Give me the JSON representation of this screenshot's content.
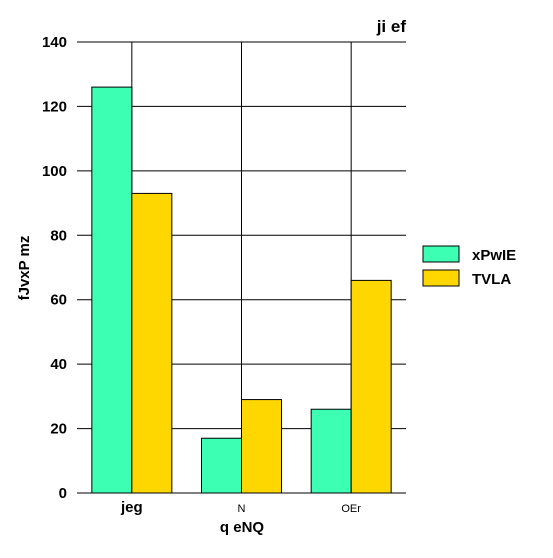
{
  "chart_data": {
    "type": "bar",
    "title": "ji  ef",
    "xlabel": "q eNQ",
    "ylabel": "fJvxP mz",
    "categories": [
      "jeg",
      "N",
      "OEr"
    ],
    "series": [
      {
        "name": "xPwIE",
        "values": [
          126,
          17,
          26
        ],
        "color": "#3dffb4"
      },
      {
        "name": "TVLA",
        "values": [
          93,
          29,
          66
        ],
        "color": "#ffd700"
      }
    ],
    "ylim": [
      0,
      140
    ],
    "yticks": [
      0,
      20,
      40,
      60,
      80,
      100,
      120,
      140
    ],
    "grid": true,
    "legend_position": "right"
  }
}
